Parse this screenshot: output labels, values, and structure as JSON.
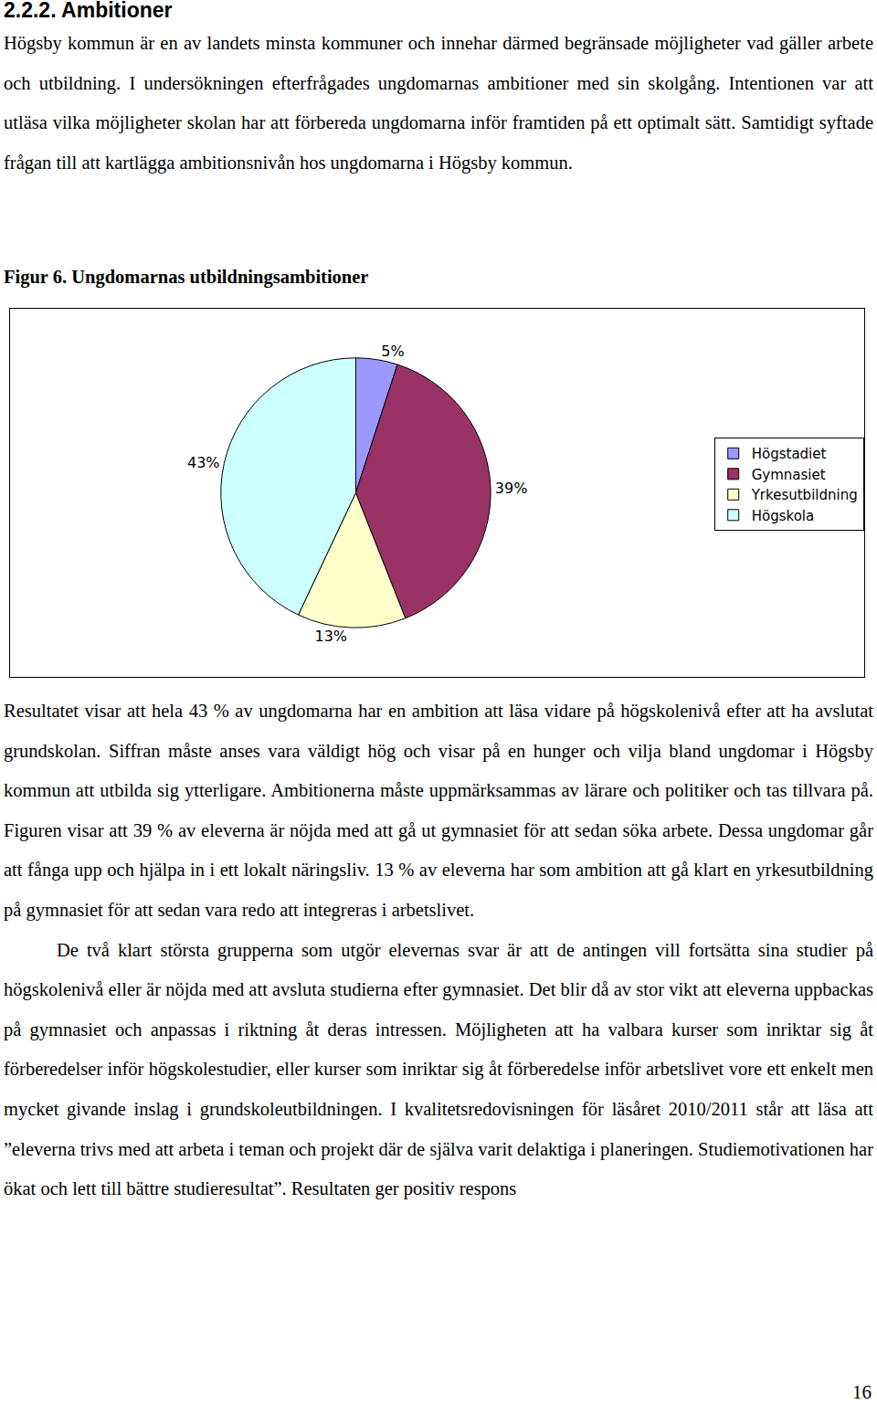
{
  "heading": "2.2.2. Ambitioner",
  "intro": "Högsby kommun är en av landets minsta kommuner och innehar därmed begränsade möjligheter vad gäller arbete och utbildning. I undersökningen efterfrågades ungdomarnas ambitioner med sin skolgång. Intentionen var att utläsa vilka möjligheter skolan har att förbereda ungdomarna inför framtiden på ett optimalt sätt. Samtidigt syftade frågan till att kartlägga ambitionsnivån hos ungdomarna i Högsby kommun.",
  "caption": "Figur 6. Ungdomarnas utbildningsambitioner",
  "chart_data": {
    "type": "pie",
    "categories": [
      "Högstadiet",
      "Gymnasiet",
      "Yrkesutbildning",
      "Högskola"
    ],
    "values": [
      5,
      39,
      13,
      43
    ],
    "value_labels": [
      "5%",
      "39%",
      "13%",
      "43%"
    ],
    "colors": [
      "#9999ff",
      "#993366",
      "#ffffcc",
      "#ccffff"
    ],
    "data_labels": true,
    "legend": "right"
  },
  "paragraphs": [
    "Resultatet visar att hela 43 % av ungdomarna har en ambition att läsa vidare på högskolenivå efter att ha avslutat grundskolan. Siffran måste anses vara väldigt hög och visar på en hunger och vilja bland ungdomar i Högsby kommun att utbilda sig ytterligare. Ambitionerna måste uppmärksammas av lärare och politiker och tas tillvara på. Figuren visar att 39 % av eleverna är nöjda med att gå ut gymnasiet för att sedan söka arbete. Dessa ungdomar går att fånga upp och hjälpa in i ett lokalt näringsliv. 13 % av eleverna har som ambition att gå klart en yrkesutbildning på gymnasiet för att sedan vara redo att integreras i arbetslivet.",
    "De två klart största grupperna som utgör elevernas svar är att de antingen vill fortsätta sina studier på högskolenivå eller är nöjda med att avsluta studierna efter gymnasiet. Det blir då av stor vikt att eleverna uppbackas på gymnasiet och anpassas i riktning åt deras intressen. Möjligheten att ha valbara kurser som inriktar sig åt förberedelser inför högskolestudier, eller kurser som inriktar sig åt förberedelse inför arbetslivet vore ett enkelt men mycket givande inslag i grundskoleutbildningen. I kvalitetsredovisningen för läsåret 2010/2011 står att läsa att ”eleverna trivs med att arbeta i teman och projekt där de själva varit delaktiga i planeringen. Studiemotivationen har ökat och lett till bättre studieresultat”. Resultaten ger positiv respons"
  ],
  "page_number": "16"
}
